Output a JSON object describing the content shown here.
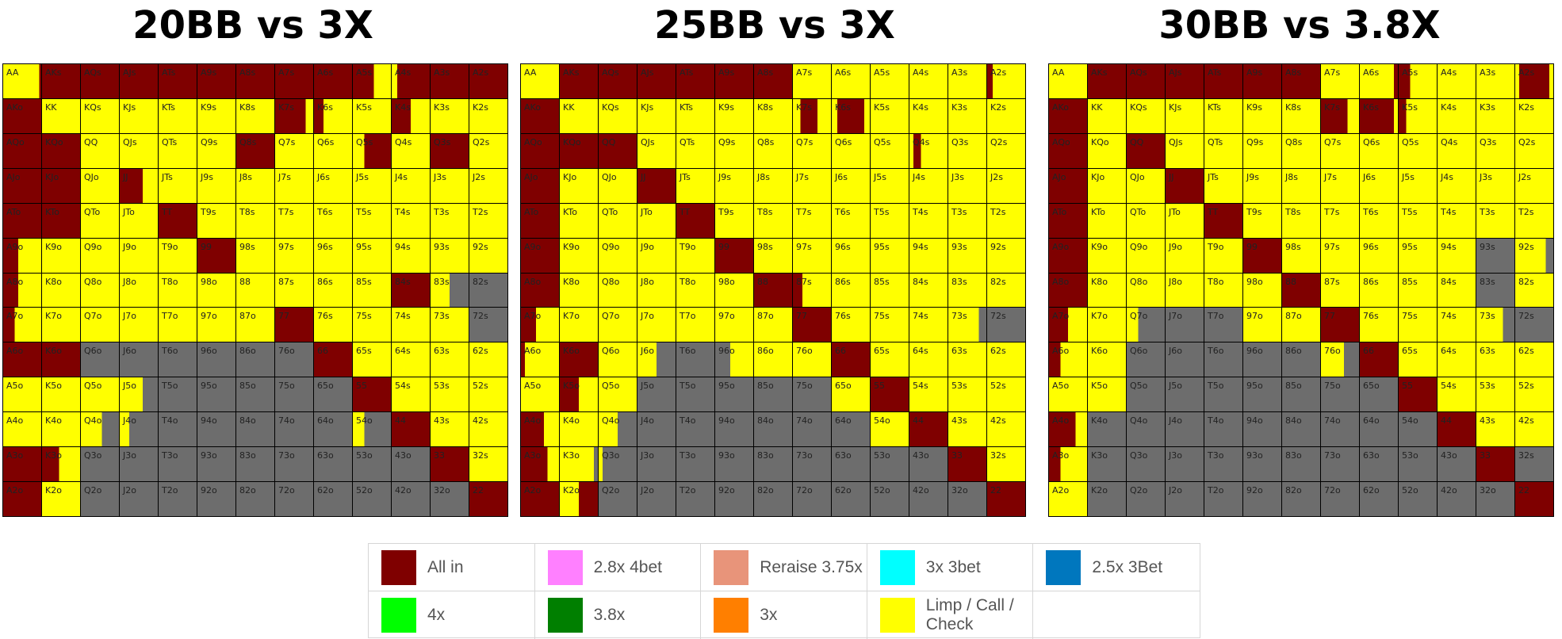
{
  "colors": {
    "A": "#7f0000",
    "L": "#ffff00",
    "F": "#6d6d6d"
  },
  "hands": [
    [
      "AA",
      "AKs",
      "AQs",
      "AJs",
      "ATs",
      "A9s",
      "A8s",
      "A7s",
      "A6s",
      "A5s",
      "A4s",
      "A3s",
      "A2s"
    ],
    [
      "AKo",
      "KK",
      "KQs",
      "KJs",
      "KTs",
      "K9s",
      "K8s",
      "K7s",
      "K6s",
      "K5s",
      "K4s",
      "K3s",
      "K2s"
    ],
    [
      "AQo",
      "KQo",
      "QQ",
      "QJs",
      "QTs",
      "Q9s",
      "Q8s",
      "Q7s",
      "Q6s",
      "Q5s",
      "Q4s",
      "Q3s",
      "Q2s"
    ],
    [
      "AJo",
      "KJo",
      "QJo",
      "JJ",
      "JTs",
      "J9s",
      "J8s",
      "J7s",
      "J6s",
      "J5s",
      "J4s",
      "J3s",
      "J2s"
    ],
    [
      "ATo",
      "KTo",
      "QTo",
      "JTo",
      "TT",
      "T9s",
      "T8s",
      "T7s",
      "T6s",
      "T5s",
      "T4s",
      "T3s",
      "T2s"
    ],
    [
      "A9o",
      "K9o",
      "Q9o",
      "J9o",
      "T9o",
      "99",
      "98s",
      "97s",
      "96s",
      "95s",
      "94s",
      "93s",
      "92s"
    ],
    [
      "A8o",
      "K8o",
      "Q8o",
      "J8o",
      "T8o",
      "98o",
      "88",
      "87s",
      "86s",
      "85s",
      "84s",
      "83s",
      "82s"
    ],
    [
      "A7o",
      "K7o",
      "Q7o",
      "J7o",
      "T7o",
      "97o",
      "87o",
      "77",
      "76s",
      "75s",
      "74s",
      "73s",
      "72s"
    ],
    [
      "A6o",
      "K6o",
      "Q6o",
      "J6o",
      "T6o",
      "96o",
      "86o",
      "76o",
      "66",
      "65s",
      "64s",
      "63s",
      "62s"
    ],
    [
      "A5o",
      "K5o",
      "Q5o",
      "J5o",
      "T5o",
      "95o",
      "85o",
      "75o",
      "65o",
      "55",
      "54s",
      "53s",
      "52s"
    ],
    [
      "A4o",
      "K4o",
      "Q4o",
      "J4o",
      "T4o",
      "94o",
      "84o",
      "74o",
      "64o",
      "54o",
      "44",
      "43s",
      "42s"
    ],
    [
      "A3o",
      "K3o",
      "Q3o",
      "J3o",
      "T3o",
      "93o",
      "83o",
      "73o",
      "63o",
      "53o",
      "43o",
      "33",
      "32s"
    ],
    [
      "A2o",
      "K2o",
      "Q2o",
      "J2o",
      "T2o",
      "92o",
      "82o",
      "72o",
      "62o",
      "52o",
      "42o",
      "32o",
      "22"
    ]
  ],
  "chart_data": [
    {
      "type": "heatmap",
      "title": "20BB vs 3X",
      "actions": [
        "LAAAAAAAALAAA",
        "ALLLLLLALLLLL",
        "AALLLLALLLLAL",
        "AALALLLLLLLLL",
        "AALLALLLLLLLL",
        "ALLLLALLLLLLL",
        "ALLLLLLLLLALF",
        "ALLLLLLALLLLF",
        "AAFFFFFFALLLL",
        "LLLLFFFFFALLL",
        "LLLLFFFFFLALL",
        "ALFFFFFFFFFAL",
        "ALFFFFFFFFFFA"
      ],
      "splits": {
        "0,0": [
          [
            "L",
            0.95
          ],
          [
            "A",
            0.05
          ]
        ],
        "0,9": [
          [
            "A",
            0.55
          ],
          [
            "L",
            0.45
          ]
        ],
        "0,10": [
          [
            "L",
            0.15
          ],
          [
            "A",
            0.85
          ]
        ],
        "1,7": [
          [
            "A",
            0.8
          ],
          [
            "L",
            0.2
          ]
        ],
        "1,8": [
          [
            "A",
            0.25
          ],
          [
            "L",
            0.75
          ]
        ],
        "1,10": [
          [
            "A",
            0.5
          ],
          [
            "L",
            0.5
          ]
        ],
        "2,9": [
          [
            "L",
            0.3
          ],
          [
            "A",
            0.7
          ]
        ],
        "3,3": [
          [
            "A",
            0.6
          ],
          [
            "L",
            0.4
          ]
        ],
        "5,0": [
          [
            "A",
            0.4
          ],
          [
            "L",
            0.6
          ]
        ],
        "6,0": [
          [
            "A",
            0.4
          ],
          [
            "L",
            0.6
          ]
        ],
        "6,11": [
          [
            "L",
            0.5
          ],
          [
            "F",
            0.5
          ]
        ],
        "7,0": [
          [
            "A",
            0.3
          ],
          [
            "L",
            0.7
          ]
        ],
        "9,3": [
          [
            "L",
            0.6
          ],
          [
            "F",
            0.4
          ]
        ],
        "10,2": [
          [
            "L",
            0.55
          ],
          [
            "F",
            0.45
          ]
        ],
        "10,3": [
          [
            "L",
            0.25
          ],
          [
            "F",
            0.75
          ]
        ],
        "10,9": [
          [
            "L",
            0.3
          ],
          [
            "F",
            0.7
          ]
        ],
        "11,1": [
          [
            "A",
            0.45
          ],
          [
            "L",
            0.55
          ]
        ]
      }
    },
    {
      "type": "heatmap",
      "title": "25BB vs 3X",
      "actions": [
        "LAAAAAALLLLLL",
        "ALLLLLLLALLLL",
        "AAALLLLLLLLLL",
        "ALLALLLLLLLLL",
        "ALLLALLLLLLLL",
        "ALLLLALLLLLLL",
        "ALLLLLALLLLLL",
        "ALLLLLLALLLLF",
        "LALLFFLLALLLL",
        "LALFFFFFLALLL",
        "LLFFFFFFFLALL",
        "LLFFFFFFFFFAL",
        "ALFFFFFFFFFFA"
      ],
      "splits": {
        "0,12": [
          [
            "A",
            0.15
          ],
          [
            "L",
            0.85
          ]
        ],
        "1,7": [
          [
            "L",
            0.2
          ],
          [
            "A",
            0.45
          ],
          [
            "L",
            0.35
          ]
        ],
        "1,8": [
          [
            "L",
            0.15
          ],
          [
            "A",
            0.7
          ],
          [
            "L",
            0.15
          ]
        ],
        "2,10": [
          [
            "L",
            0.1
          ],
          [
            "A",
            0.2
          ],
          [
            "L",
            0.7
          ]
        ],
        "6,7": [
          [
            "A",
            0.25
          ],
          [
            "L",
            0.75
          ]
        ],
        "7,0": [
          [
            "A",
            0.4
          ],
          [
            "L",
            0.6
          ]
        ],
        "7,11": [
          [
            "L",
            0.8
          ],
          [
            "F",
            0.2
          ]
        ],
        "8,0": [
          [
            "A",
            0.1
          ],
          [
            "L",
            0.9
          ]
        ],
        "8,3": [
          [
            "L",
            0.5
          ],
          [
            "F",
            0.5
          ]
        ],
        "8,5": [
          [
            "F",
            0.4
          ],
          [
            "L",
            0.6
          ]
        ],
        "9,1": [
          [
            "A",
            0.5
          ],
          [
            "L",
            0.5
          ]
        ],
        "10,0": [
          [
            "A",
            0.6
          ],
          [
            "L",
            0.4
          ]
        ],
        "10,2": [
          [
            "L",
            0.5
          ],
          [
            "F",
            0.5
          ]
        ],
        "11,0": [
          [
            "A",
            0.7
          ],
          [
            "L",
            0.3
          ]
        ],
        "11,1": [
          [
            "L",
            0.9
          ],
          [
            "F",
            0.1
          ]
        ],
        "11,2": [
          [
            "L",
            0.1
          ],
          [
            "F",
            0.9
          ]
        ],
        "12,1": [
          [
            "L",
            0.5
          ],
          [
            "A",
            0.5
          ]
        ]
      }
    },
    {
      "type": "heatmap",
      "title": "30BB vs 3.8X",
      "actions": [
        "LAAAAAALLALLA",
        "ALLLLLLALLLLL",
        "ALALLLLLLLLLL",
        "ALLALLLLLLLLL",
        "ALLLALLLLLLLL",
        "ALLLLALLLLLFL",
        "ALLLLLALLLLFL",
        "ALLFFLLALLLLF",
        "LLFFFFFLALLLL",
        "LLFFFFFFFALLL",
        "LFFFFFFFFFALL",
        "LFFFFFFFFFFAF",
        "LFFFFFFFFFFFA"
      ],
      "splits": {
        "0,8": [
          [
            "L",
            0.9
          ],
          [
            "A",
            0.1
          ]
        ],
        "0,9": [
          [
            "A",
            0.3
          ],
          [
            "L",
            0.7
          ]
        ],
        "0,12": [
          [
            "L",
            0.1
          ],
          [
            "A",
            0.8
          ],
          [
            "L",
            0.1
          ]
        ],
        "1,7": [
          [
            "A",
            0.7
          ],
          [
            "L",
            0.3
          ]
        ],
        "1,8": [
          [
            "A",
            0.9
          ],
          [
            "L",
            0.1
          ]
        ],
        "1,9": [
          [
            "A",
            0.2
          ],
          [
            "L",
            0.8
          ]
        ],
        "5,12": [
          [
            "L",
            0.8
          ],
          [
            "F",
            0.2
          ]
        ],
        "7,0": [
          [
            "A",
            0.5
          ],
          [
            "L",
            0.5
          ]
        ],
        "7,2": [
          [
            "L",
            0.3
          ],
          [
            "F",
            0.7
          ]
        ],
        "7,11": [
          [
            "L",
            0.7
          ],
          [
            "F",
            0.3
          ]
        ],
        "8,0": [
          [
            "A",
            0.3
          ],
          [
            "L",
            0.7
          ]
        ],
        "8,7": [
          [
            "L",
            0.6
          ],
          [
            "F",
            0.4
          ]
        ],
        "10,0": [
          [
            "A",
            0.7
          ],
          [
            "L",
            0.3
          ]
        ],
        "11,0": [
          [
            "A",
            0.3
          ],
          [
            "L",
            0.7
          ]
        ]
      }
    }
  ],
  "legend": [
    {
      "label": "All in",
      "color": "#7f0000"
    },
    {
      "label": "2.8x 4bet",
      "color": "#ff80ff"
    },
    {
      "label": "Reraise 3.75x",
      "color": "#e8947a"
    },
    {
      "label": "3x 3bet",
      "color": "#00ffff"
    },
    {
      "label": "2.5x 3Bet",
      "color": "#0077be"
    },
    {
      "label": "4x",
      "color": "#00ff00"
    },
    {
      "label": "3.8x",
      "color": "#007f00"
    },
    {
      "label": "3x",
      "color": "#ff7f00"
    },
    {
      "label": "Limp / Call / Check",
      "color": "#ffff00"
    }
  ]
}
